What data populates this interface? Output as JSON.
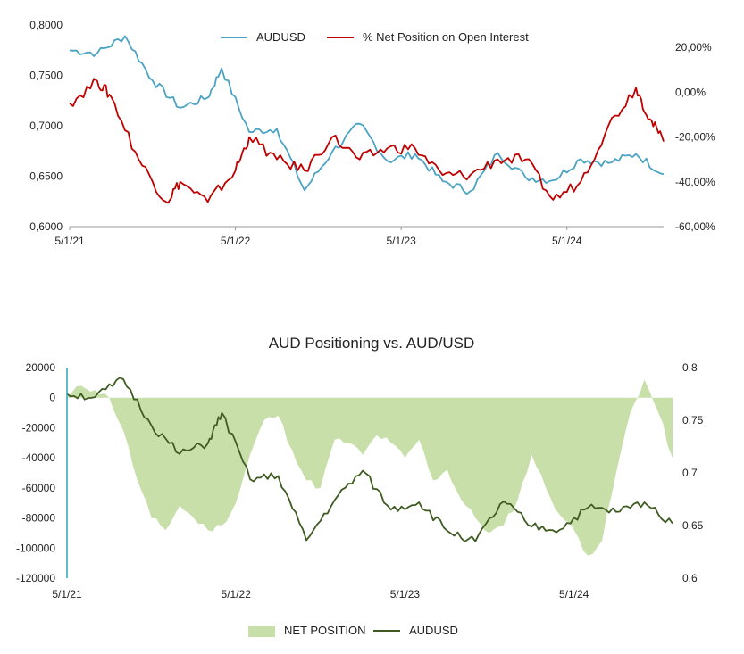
{
  "chart_data": [
    {
      "type": "line",
      "title": "",
      "legend_position": "top",
      "x_ticks": [
        "5/1/21",
        "5/1/22",
        "5/1/23",
        "5/1/24"
      ],
      "x_range": [
        "2021-05",
        "2024-12"
      ],
      "y_left": {
        "ticks": [
          "0,6000",
          "0,6500",
          "0,7000",
          "0,7500",
          "0,8000"
        ],
        "range": [
          0.6,
          0.8
        ]
      },
      "y_right": {
        "ticks": [
          "-60,00%",
          "-40,00%",
          "-20,00%",
          "0,00%",
          "20,00%"
        ],
        "range": [
          -60,
          30
        ]
      },
      "series": [
        {
          "name": "AUDUSD",
          "axis": "left",
          "color": "#4ba3c3",
          "x": [
            "2021-05",
            "2021-07",
            "2021-09",
            "2021-11",
            "2022-01",
            "2022-03",
            "2022-04",
            "2022-06",
            "2022-08",
            "2022-10",
            "2022-12",
            "2023-02",
            "2023-04",
            "2023-06",
            "2023-08",
            "2023-10",
            "2023-12",
            "2024-02",
            "2024-04",
            "2024-06",
            "2024-08",
            "2024-10",
            "2024-12"
          ],
          "values": [
            0.775,
            0.772,
            0.789,
            0.745,
            0.718,
            0.728,
            0.757,
            0.694,
            0.697,
            0.636,
            0.674,
            0.702,
            0.665,
            0.672,
            0.645,
            0.635,
            0.673,
            0.649,
            0.646,
            0.667,
            0.663,
            0.672,
            0.652
          ]
        },
        {
          "name": "% Net Position on Open Interest",
          "axis": "right",
          "color": "#c00000",
          "x": [
            "2021-05",
            "2021-07",
            "2021-08",
            "2021-10",
            "2021-12",
            "2022-01",
            "2022-03",
            "2022-05",
            "2022-06",
            "2022-08",
            "2022-10",
            "2022-12",
            "2023-02",
            "2023-04",
            "2023-06",
            "2023-08",
            "2023-10",
            "2023-12",
            "2024-02",
            "2024-04",
            "2024-06",
            "2024-08",
            "2024-10",
            "2024-11",
            "2024-12"
          ],
          "values": [
            -5,
            5,
            -2,
            -30,
            -49,
            -40,
            -49,
            -35,
            -20,
            -30,
            -35,
            -20,
            -30,
            -25,
            -25,
            -37,
            -37,
            -30,
            -30,
            -48,
            -40,
            -15,
            2,
            -12,
            -22
          ]
        }
      ]
    },
    {
      "type": "area",
      "title": "AUD Positioning vs. AUD/USD",
      "legend_position": "bottom",
      "x_ticks": [
        "5/1/21",
        "5/1/22",
        "5/1/23",
        "5/1/24"
      ],
      "x_range": [
        "2021-05",
        "2024-12"
      ],
      "y_left": {
        "ticks": [
          "20000",
          "0",
          "-20000",
          "-40000",
          "-60000",
          "-80000",
          "-100000",
          "-120000"
        ],
        "range": [
          -120000,
          20000
        ]
      },
      "y_right": {
        "ticks": [
          "0,8",
          "0,75",
          "0,7",
          "0,65",
          "0,6"
        ],
        "range": [
          0.6,
          0.8
        ]
      },
      "series": [
        {
          "name": "NET POSITION",
          "axis": "left",
          "color": "#c9dfaa",
          "x": [
            "2021-05",
            "2021-06",
            "2021-07",
            "2021-08",
            "2021-09",
            "2021-10",
            "2021-11",
            "2021-12",
            "2022-01",
            "2022-02",
            "2022-03",
            "2022-04",
            "2022-05",
            "2022-06",
            "2022-07",
            "2022-08",
            "2022-09",
            "2022-10",
            "2022-11",
            "2022-12",
            "2023-01",
            "2023-02",
            "2023-03",
            "2023-04",
            "2023-05",
            "2023-06",
            "2023-07",
            "2023-08",
            "2023-09",
            "2023-10",
            "2023-11",
            "2023-12",
            "2024-01",
            "2024-02",
            "2024-03",
            "2024-04",
            "2024-05",
            "2024-06",
            "2024-07",
            "2024-08",
            "2024-09",
            "2024-10",
            "2024-11",
            "2024-12"
          ],
          "values": [
            0,
            8000,
            5000,
            0,
            -22000,
            -55000,
            -80000,
            -88000,
            -72000,
            -80000,
            -88000,
            -85000,
            -70000,
            -38000,
            -15000,
            -12000,
            -35000,
            -55000,
            -60000,
            -28000,
            -30000,
            -38000,
            -25000,
            -30000,
            -40000,
            -28000,
            -55000,
            -48000,
            -68000,
            -80000,
            -90000,
            -85000,
            -68000,
            -38000,
            -60000,
            -78000,
            -88000,
            -105000,
            -95000,
            -50000,
            -10000,
            12000,
            -10000,
            -40000
          ]
        },
        {
          "name": "AUDUSD",
          "axis": "right",
          "color": "#3f5b21",
          "x": [
            "2021-05",
            "2021-07",
            "2021-09",
            "2021-11",
            "2022-01",
            "2022-03",
            "2022-04",
            "2022-06",
            "2022-08",
            "2022-10",
            "2022-12",
            "2023-02",
            "2023-04",
            "2023-06",
            "2023-08",
            "2023-10",
            "2023-12",
            "2024-02",
            "2024-04",
            "2024-06",
            "2024-08",
            "2024-10",
            "2024-12"
          ],
          "values": [
            0.775,
            0.772,
            0.789,
            0.745,
            0.718,
            0.728,
            0.757,
            0.694,
            0.697,
            0.636,
            0.674,
            0.702,
            0.665,
            0.672,
            0.645,
            0.635,
            0.673,
            0.649,
            0.646,
            0.667,
            0.663,
            0.672,
            0.652
          ]
        }
      ]
    }
  ]
}
